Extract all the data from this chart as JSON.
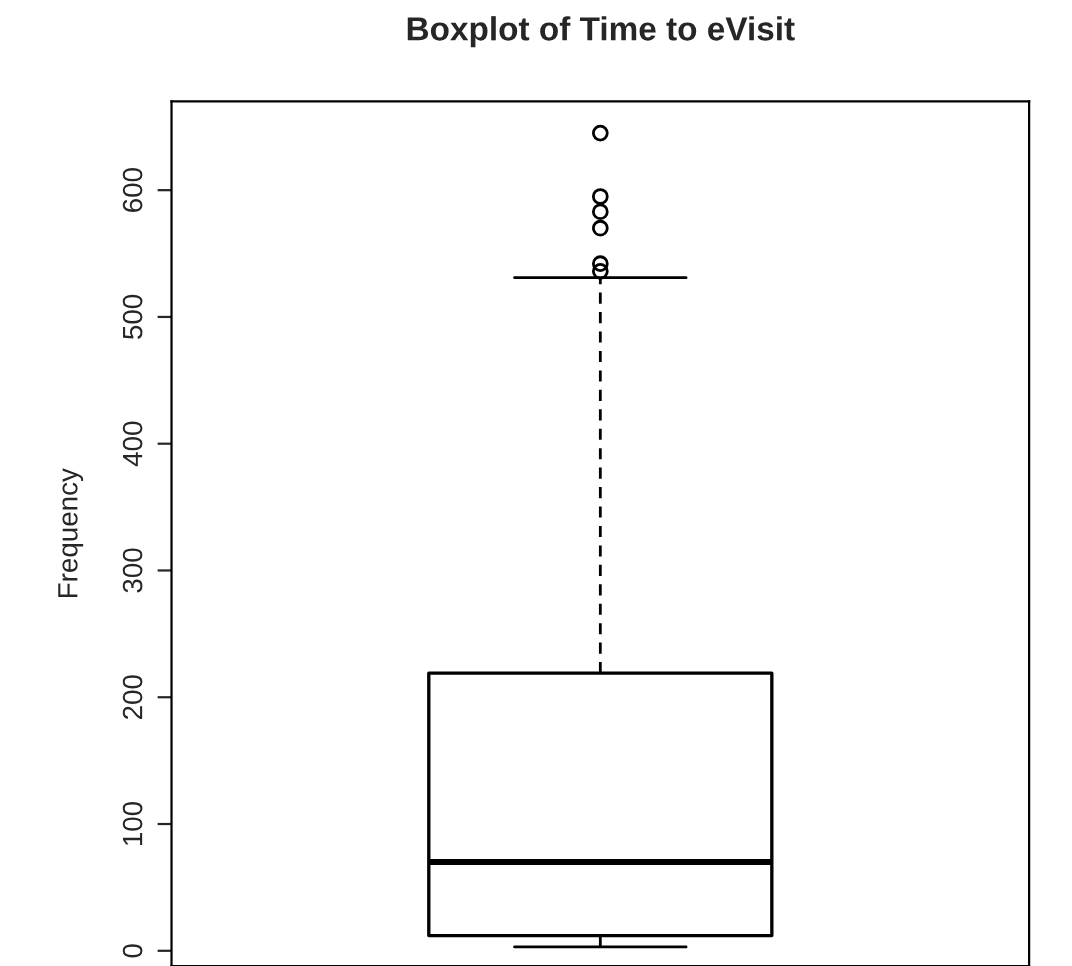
{
  "chart_data": {
    "type": "box",
    "title": "Boxplot of Time to eVisit",
    "ylabel": "Frequency",
    "categories": [
      null
    ],
    "boxes": [
      {
        "low": 3,
        "q1": 12,
        "median": 70,
        "q3": 219,
        "high": 531,
        "outliers": [
          536,
          542,
          570,
          583,
          595,
          645
        ]
      }
    ],
    "ylim": [
      -12,
      670
    ],
    "yticks": [
      0,
      100,
      200,
      300,
      400,
      500,
      600
    ],
    "grid": false,
    "legend": false
  }
}
